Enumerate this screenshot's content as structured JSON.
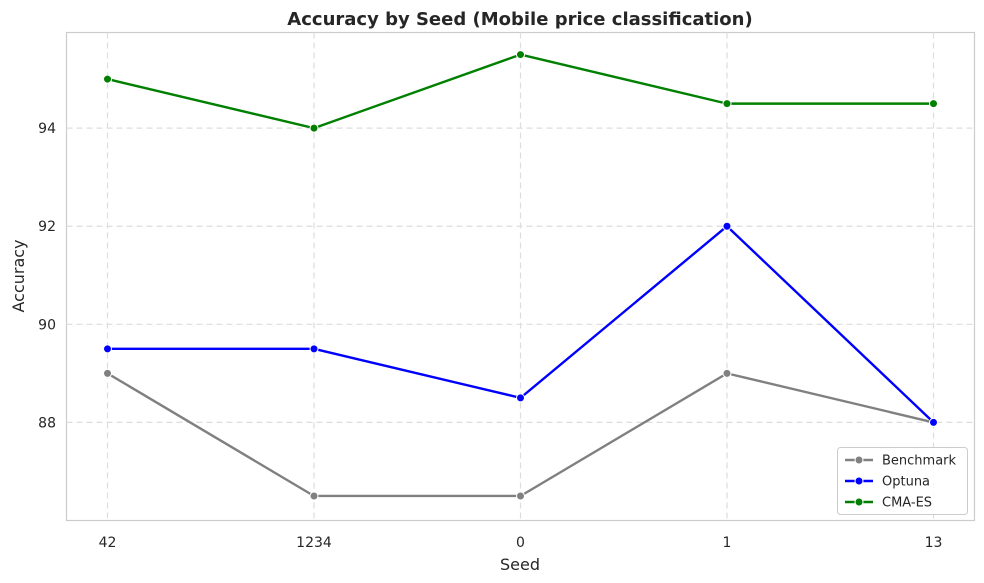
{
  "chart_data": {
    "type": "line",
    "title": "Accuracy by Seed (Mobile price classification)",
    "xlabel": "Seed",
    "ylabel": "Accuracy",
    "categories": [
      "42",
      "1234",
      "0",
      "1",
      "13"
    ],
    "yticks": [
      88,
      90,
      92,
      94
    ],
    "ylim": [
      86.0,
      95.95
    ],
    "grid": true,
    "legend_position": "lower-right",
    "series": [
      {
        "name": "Benchmark",
        "color": "#808080",
        "values": [
          89.0,
          86.5,
          86.5,
          89.0,
          88.0
        ]
      },
      {
        "name": "Optuna",
        "color": "#0000ff",
        "values": [
          89.5,
          89.5,
          88.5,
          92.0,
          88.0
        ]
      },
      {
        "name": "CMA-ES",
        "color": "#008000",
        "values": [
          95.0,
          94.0,
          95.5,
          94.5,
          94.5
        ]
      }
    ]
  }
}
